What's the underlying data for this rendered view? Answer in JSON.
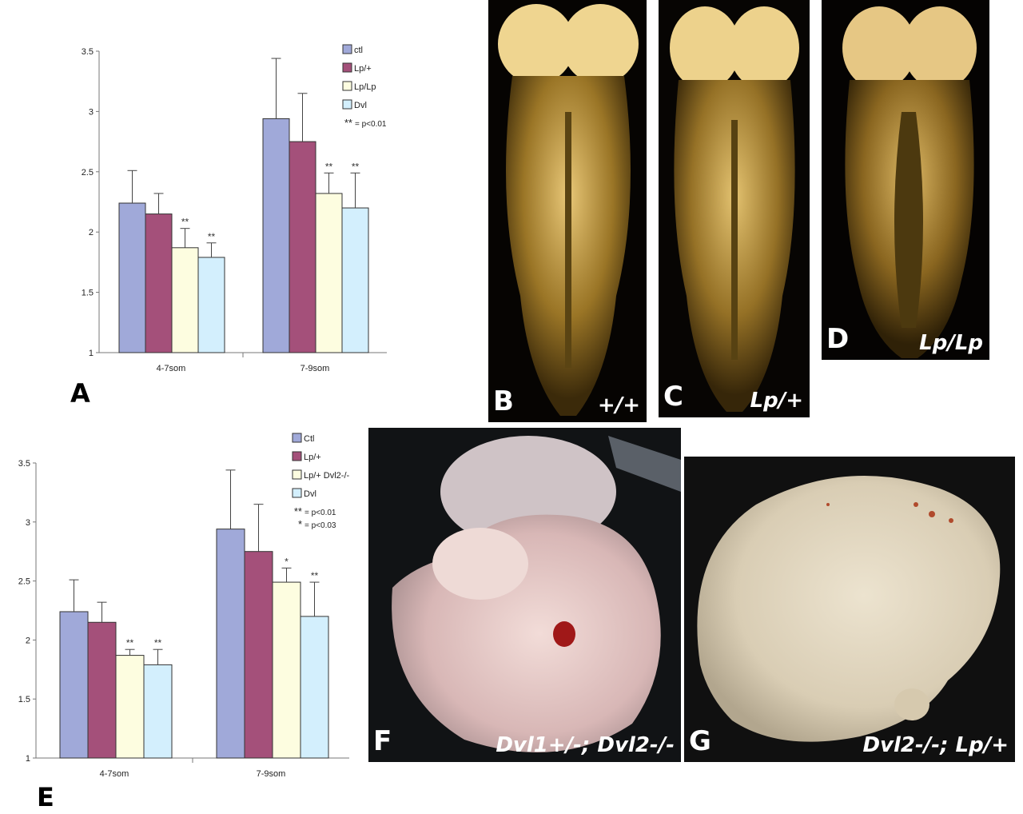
{
  "panels": {
    "a": "A",
    "b": "B",
    "c": "C",
    "d": "D",
    "e": "E",
    "f": "F",
    "g": "G"
  },
  "photo_labels": {
    "b": "+/+",
    "c": "Lp/+",
    "d": "Lp/Lp",
    "f": "Dvl1+/-; Dvl2-/-",
    "g": "Dvl2-/-; Lp/+"
  },
  "colors": {
    "ctl": "#a0a9d9",
    "lp_het": "#a4507a",
    "lp_hom": "#fdfde0",
    "dvl": "#d3effd"
  },
  "chart_data": [
    {
      "type": "bar",
      "categories": [
        "4-7som",
        "7-9som"
      ],
      "ylim": [
        1,
        3.5
      ],
      "yticks": [
        "1",
        "1.5",
        "2",
        "2.5",
        "3",
        "3.5"
      ],
      "series": [
        {
          "name": "ctl",
          "values": [
            2.24,
            2.94
          ],
          "errors": [
            0.27,
            0.5
          ],
          "sig": [
            "",
            ""
          ]
        },
        {
          "name": "Lp/+",
          "values": [
            2.15,
            2.75
          ],
          "errors": [
            0.17,
            0.4
          ],
          "sig": [
            "",
            ""
          ]
        },
        {
          "name": "Lp/Lp",
          "values": [
            1.87,
            2.32
          ],
          "errors": [
            0.16,
            0.17
          ],
          "sig": [
            "**",
            "**"
          ]
        },
        {
          "name": "Dvl",
          "values": [
            1.79,
            2.2
          ],
          "errors": [
            0.12,
            0.29
          ],
          "sig": [
            "**",
            "**"
          ]
        }
      ],
      "legend_note_symbol": [
        "**"
      ],
      "legend_notes": [
        "= p<0.01"
      ]
    },
    {
      "type": "bar",
      "categories": [
        "4-7som",
        "7-9som"
      ],
      "ylim": [
        1,
        3.5
      ],
      "yticks": [
        "1",
        "1.5",
        "2",
        "2.5",
        "3",
        "3.5"
      ],
      "series": [
        {
          "name": "Ctl",
          "values": [
            2.24,
            2.94
          ],
          "errors": [
            0.27,
            0.5
          ],
          "sig": [
            "",
            ""
          ]
        },
        {
          "name": "Lp/+",
          "values": [
            2.15,
            2.75
          ],
          "errors": [
            0.17,
            0.4
          ],
          "sig": [
            "",
            ""
          ]
        },
        {
          "name": "Lp/+ Dvl2-/-",
          "values": [
            1.87,
            2.49
          ],
          "errors": [
            0.05,
            0.12
          ],
          "sig": [
            "**",
            "*"
          ]
        },
        {
          "name": "Dvl",
          "values": [
            1.79,
            2.2
          ],
          "errors": [
            0.13,
            0.29
          ],
          "sig": [
            "**",
            "**"
          ]
        }
      ],
      "legend_note_symbol": [
        "**",
        "*"
      ],
      "legend_notes": [
        "= p<0.01",
        "= p<0.03"
      ]
    }
  ]
}
